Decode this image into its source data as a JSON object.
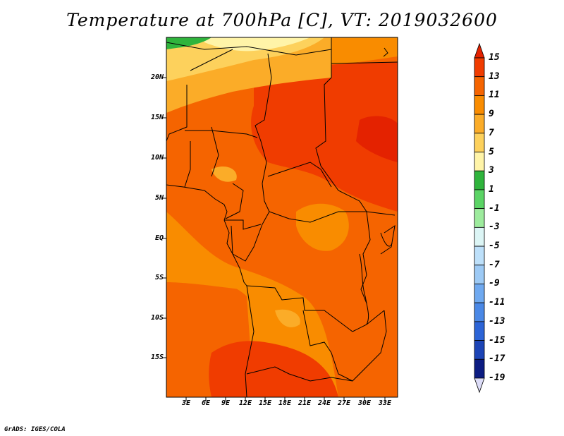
{
  "title": "Temperature at 700hPa [C], VT: 2019032600",
  "credit": "GrADS: IGES/COLA",
  "map": {
    "lat_labels": [
      "20N",
      "15N",
      "10N",
      "5N",
      "EQ",
      "5S",
      "10S",
      "15S"
    ],
    "lon_labels": [
      "3E",
      "6E",
      "9E",
      "12E",
      "15E",
      "18E",
      "21E",
      "24E",
      "27E",
      "30E",
      "33E"
    ]
  },
  "colorbar": {
    "labels": [
      "15",
      "13",
      "11",
      "9",
      "7",
      "5",
      "3",
      "1",
      "-1",
      "-3",
      "-5",
      "-7",
      "-9",
      "-11",
      "-13",
      "-15",
      "-17",
      "-19"
    ],
    "colors": [
      "#e42200",
      "#f03c00",
      "#f56400",
      "#f98c00",
      "#fbac28",
      "#fdd15c",
      "#fff4a8",
      "#2fb43c",
      "#5bd465",
      "#9deb9d",
      "#dcf5f5",
      "#bde0fa",
      "#9dcaf5",
      "#6fa9f0",
      "#4a88e6",
      "#2c64d7",
      "#1c44b6",
      "#0c1c82",
      "#dcdcf7"
    ]
  }
}
